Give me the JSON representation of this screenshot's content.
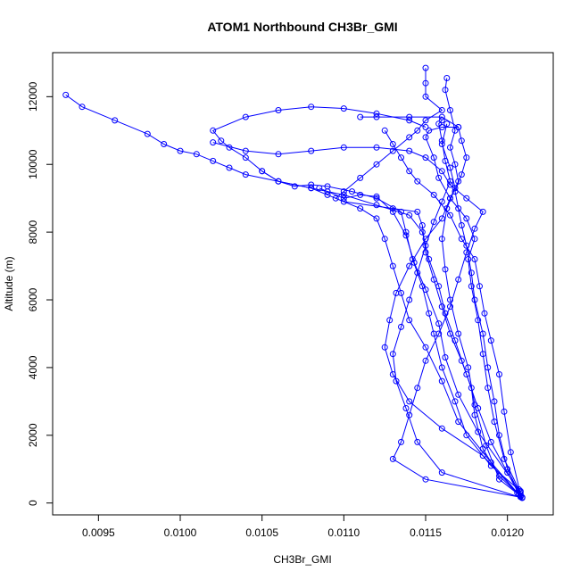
{
  "chart_data": {
    "type": "scatter",
    "title": "ATOM1 Northbound CH3Br_GMI",
    "xlabel": "CH3Br_GMI",
    "ylabel": "Altitude (m)",
    "xlim": [
      0.00922,
      0.01228
    ],
    "ylim": [
      -350,
      13300
    ],
    "x_ticks": [
      0.0095,
      0.01,
      0.0105,
      0.011,
      0.0115,
      0.012
    ],
    "x_tick_labels": [
      "0.0095",
      "0.0100",
      "0.0105",
      "0.0110",
      "0.0115",
      "0.0120"
    ],
    "y_ticks": [
      0,
      2000,
      4000,
      6000,
      8000,
      10000,
      12000
    ],
    "y_tick_labels": [
      "0",
      "2000",
      "4000",
      "6000",
      "8000",
      "10000",
      "12000"
    ],
    "grid": false,
    "series_color": "#0000ff",
    "series": [
      {
        "values": [
          [
            0.01208,
            200
          ],
          [
            0.01195,
            800
          ],
          [
            0.01185,
            1600
          ],
          [
            0.0118,
            2600
          ],
          [
            0.01178,
            3400
          ],
          [
            0.01172,
            4200
          ],
          [
            0.01165,
            5000
          ],
          [
            0.0116,
            5800
          ],
          [
            0.01155,
            6600
          ],
          [
            0.0115,
            7400
          ],
          [
            0.01148,
            8200
          ],
          [
            0.01145,
            8600
          ],
          [
            0.0113,
            8700
          ],
          [
            0.011,
            8900
          ],
          [
            0.0109,
            9100
          ],
          [
            0.0108,
            9300
          ],
          [
            0.0106,
            9500
          ],
          [
            0.0104,
            9700
          ],
          [
            0.0103,
            9900
          ],
          [
            0.0102,
            10100
          ],
          [
            0.0101,
            10300
          ],
          [
            0.01,
            10400
          ],
          [
            0.0099,
            10600
          ],
          [
            0.0098,
            10900
          ],
          [
            0.0096,
            11300
          ],
          [
            0.0094,
            11700
          ],
          [
            0.0093,
            12050
          ]
        ]
      },
      {
        "values": [
          [
            0.01208,
            180
          ],
          [
            0.012,
            900
          ],
          [
            0.0119,
            1800
          ],
          [
            0.01182,
            2800
          ],
          [
            0.01175,
            3800
          ],
          [
            0.01168,
            4800
          ],
          [
            0.01162,
            5600
          ],
          [
            0.01158,
            6400
          ],
          [
            0.01152,
            7200
          ],
          [
            0.01148,
            8000
          ],
          [
            0.0114,
            8500
          ],
          [
            0.0112,
            8800
          ],
          [
            0.011,
            9100
          ],
          [
            0.0108,
            9300
          ],
          [
            0.0106,
            9500
          ],
          [
            0.0105,
            9800
          ],
          [
            0.0104,
            10200
          ],
          [
            0.0103,
            10500
          ],
          [
            0.01025,
            10700
          ],
          [
            0.0102,
            11000
          ],
          [
            0.0104,
            11400
          ],
          [
            0.0106,
            11600
          ],
          [
            0.0108,
            11700
          ],
          [
            0.011,
            11650
          ],
          [
            0.0112,
            11500
          ],
          [
            0.0114,
            11300
          ],
          [
            0.0115,
            11100
          ]
        ]
      },
      {
        "values": [
          [
            0.01207,
            250
          ],
          [
            0.0119,
            1200
          ],
          [
            0.0117,
            2400
          ],
          [
            0.0116,
            3600
          ],
          [
            0.0115,
            4600
          ],
          [
            0.0114,
            5400
          ],
          [
            0.01135,
            6200
          ],
          [
            0.0113,
            7000
          ],
          [
            0.01125,
            7800
          ],
          [
            0.0112,
            8400
          ],
          [
            0.0111,
            8700
          ],
          [
            0.01095,
            9000
          ],
          [
            0.011,
            9200
          ],
          [
            0.0111,
            9600
          ],
          [
            0.0112,
            10000
          ],
          [
            0.0113,
            10400
          ],
          [
            0.0114,
            10800
          ],
          [
            0.01145,
            11000
          ],
          [
            0.0115,
            11300
          ],
          [
            0.0116,
            11600
          ],
          [
            0.0115,
            12000
          ],
          [
            0.0115,
            12400
          ],
          [
            0.0115,
            12850
          ]
        ]
      },
      {
        "values": [
          [
            0.01206,
            300
          ],
          [
            0.01185,
            1400
          ],
          [
            0.0116,
            2200
          ],
          [
            0.0114,
            3000
          ],
          [
            0.0113,
            3800
          ],
          [
            0.01125,
            4600
          ],
          [
            0.01128,
            5400
          ],
          [
            0.01132,
            6200
          ],
          [
            0.0114,
            7000
          ],
          [
            0.0115,
            7800
          ],
          [
            0.0116,
            8400
          ],
          [
            0.01165,
            9000
          ],
          [
            0.0117,
            9500
          ],
          [
            0.01168,
            10000
          ],
          [
            0.01165,
            10500
          ],
          [
            0.01168,
            11000
          ],
          [
            0.01165,
            11600
          ],
          [
            0.01162,
            12200
          ],
          [
            0.01163,
            12550
          ]
        ]
      },
      {
        "values": [
          [
            0.01208,
            220
          ],
          [
            0.012,
            1000
          ],
          [
            0.01195,
            2000
          ],
          [
            0.01192,
            3000
          ],
          [
            0.01188,
            4000
          ],
          [
            0.01185,
            5000
          ],
          [
            0.0118,
            6000
          ],
          [
            0.01178,
            6800
          ],
          [
            0.01175,
            7600
          ],
          [
            0.01172,
            8200
          ],
          [
            0.0117,
            8700
          ],
          [
            0.01168,
            9200
          ],
          [
            0.01172,
            9700
          ],
          [
            0.01175,
            10200
          ],
          [
            0.01172,
            10700
          ],
          [
            0.0117,
            11100
          ],
          [
            0.0116,
            11400
          ],
          [
            0.0114,
            11400
          ],
          [
            0.0112,
            11400
          ],
          [
            0.0111,
            11400
          ]
        ]
      },
      {
        "values": [
          [
            0.01209,
            160
          ],
          [
            0.0115,
            700
          ],
          [
            0.0113,
            1300
          ],
          [
            0.01135,
            1800
          ],
          [
            0.0114,
            2600
          ],
          [
            0.01145,
            3400
          ],
          [
            0.0115,
            4200
          ],
          [
            0.01158,
            5000
          ],
          [
            0.01165,
            5800
          ],
          [
            0.0117,
            6600
          ],
          [
            0.01175,
            7400
          ],
          [
            0.0118,
            8100
          ],
          [
            0.01185,
            8600
          ],
          [
            0.01175,
            9000
          ],
          [
            0.01165,
            9400
          ],
          [
            0.0116,
            9800
          ],
          [
            0.0115,
            10200
          ],
          [
            0.0114,
            10400
          ],
          [
            0.0112,
            10500
          ],
          [
            0.011,
            10500
          ],
          [
            0.0108,
            10400
          ],
          [
            0.0106,
            10300
          ],
          [
            0.0104,
            10400
          ],
          [
            0.0102,
            10650
          ]
        ]
      },
      {
        "values": [
          [
            0.01208,
            350
          ],
          [
            0.0119,
            1100
          ],
          [
            0.01175,
            2000
          ],
          [
            0.01168,
            3000
          ],
          [
            0.0116,
            4000
          ],
          [
            0.01155,
            5000
          ],
          [
            0.01152,
            5600
          ],
          [
            0.01148,
            6400
          ],
          [
            0.01142,
            7200
          ],
          [
            0.01138,
            8000
          ],
          [
            0.01135,
            8600
          ],
          [
            0.0112,
            9000
          ],
          [
            0.01105,
            9200
          ],
          [
            0.0109,
            9350
          ],
          [
            0.0108,
            9400
          ],
          [
            0.0107,
            9350
          ],
          [
            0.0106,
            9500
          ],
          [
            0.0105,
            9800
          ]
        ]
      },
      {
        "values": [
          [
            0.01207,
            400
          ],
          [
            0.01198,
            1300
          ],
          [
            0.01192,
            2400
          ],
          [
            0.01188,
            3400
          ],
          [
            0.01185,
            4400
          ],
          [
            0.01182,
            5400
          ],
          [
            0.01178,
            6400
          ],
          [
            0.01176,
            7200
          ],
          [
            0.0118,
            7800
          ],
          [
            0.01175,
            8400
          ],
          [
            0.01165,
            9000
          ],
          [
            0.01158,
            9600
          ],
          [
            0.01155,
            10200
          ],
          [
            0.0115,
            10800
          ],
          [
            0.01152,
            11000
          ],
          [
            0.0116,
            11100
          ],
          [
            0.0117,
            11100
          ]
        ]
      },
      {
        "values": [
          [
            0.01209,
            150
          ],
          [
            0.0116,
            900
          ],
          [
            0.01145,
            1800
          ],
          [
            0.01138,
            2800
          ],
          [
            0.01132,
            3600
          ],
          [
            0.0113,
            4400
          ],
          [
            0.01135,
            5200
          ],
          [
            0.0114,
            6000
          ],
          [
            0.01145,
            6800
          ],
          [
            0.0115,
            7600
          ],
          [
            0.01155,
            8300
          ],
          [
            0.0116,
            8900
          ],
          [
            0.01165,
            9500
          ],
          [
            0.01162,
            10100
          ],
          [
            0.0116,
            10700
          ],
          [
            0.01158,
            11200
          ],
          [
            0.0116,
            11300
          ]
        ]
      },
      {
        "values": [
          [
            0.01208,
            270
          ],
          [
            0.01202,
            1500
          ],
          [
            0.01198,
            2700
          ],
          [
            0.01195,
            3800
          ],
          [
            0.0119,
            4800
          ],
          [
            0.01186,
            5600
          ],
          [
            0.01183,
            6400
          ],
          [
            0.0118,
            7200
          ],
          [
            0.01172,
            7800
          ],
          [
            0.01165,
            8500
          ],
          [
            0.01155,
            9100
          ],
          [
            0.01145,
            9500
          ],
          [
            0.0114,
            9800
          ],
          [
            0.01135,
            10200
          ],
          [
            0.0113,
            10600
          ],
          [
            0.01125,
            11000
          ]
        ]
      },
      {
        "values": [
          [
            0.01208,
            320
          ],
          [
            0.01182,
            2100
          ],
          [
            0.0117,
            3200
          ],
          [
            0.01162,
            4300
          ],
          [
            0.01158,
            5300
          ],
          [
            0.0115,
            6300
          ],
          [
            0.01143,
            7100
          ],
          [
            0.01138,
            7900
          ],
          [
            0.0113,
            8600
          ],
          [
            0.0112,
            9050
          ],
          [
            0.0111,
            9100
          ],
          [
            0.011,
            9000
          ],
          [
            0.0109,
            9200
          ],
          [
            0.01085,
            9300
          ]
        ]
      },
      {
        "values": [
          [
            0.01209,
            170
          ],
          [
            0.01195,
            700
          ],
          [
            0.01187,
            1700
          ],
          [
            0.0118,
            2900
          ],
          [
            0.01176,
            4000
          ],
          [
            0.0117,
            5000
          ],
          [
            0.01165,
            6000
          ],
          [
            0.01162,
            6900
          ],
          [
            0.0116,
            7800
          ],
          [
            0.01163,
            8700
          ],
          [
            0.01168,
            9300
          ],
          [
            0.01165,
            9900
          ],
          [
            0.0116,
            10600
          ],
          [
            0.01163,
            11200
          ]
        ]
      }
    ]
  }
}
